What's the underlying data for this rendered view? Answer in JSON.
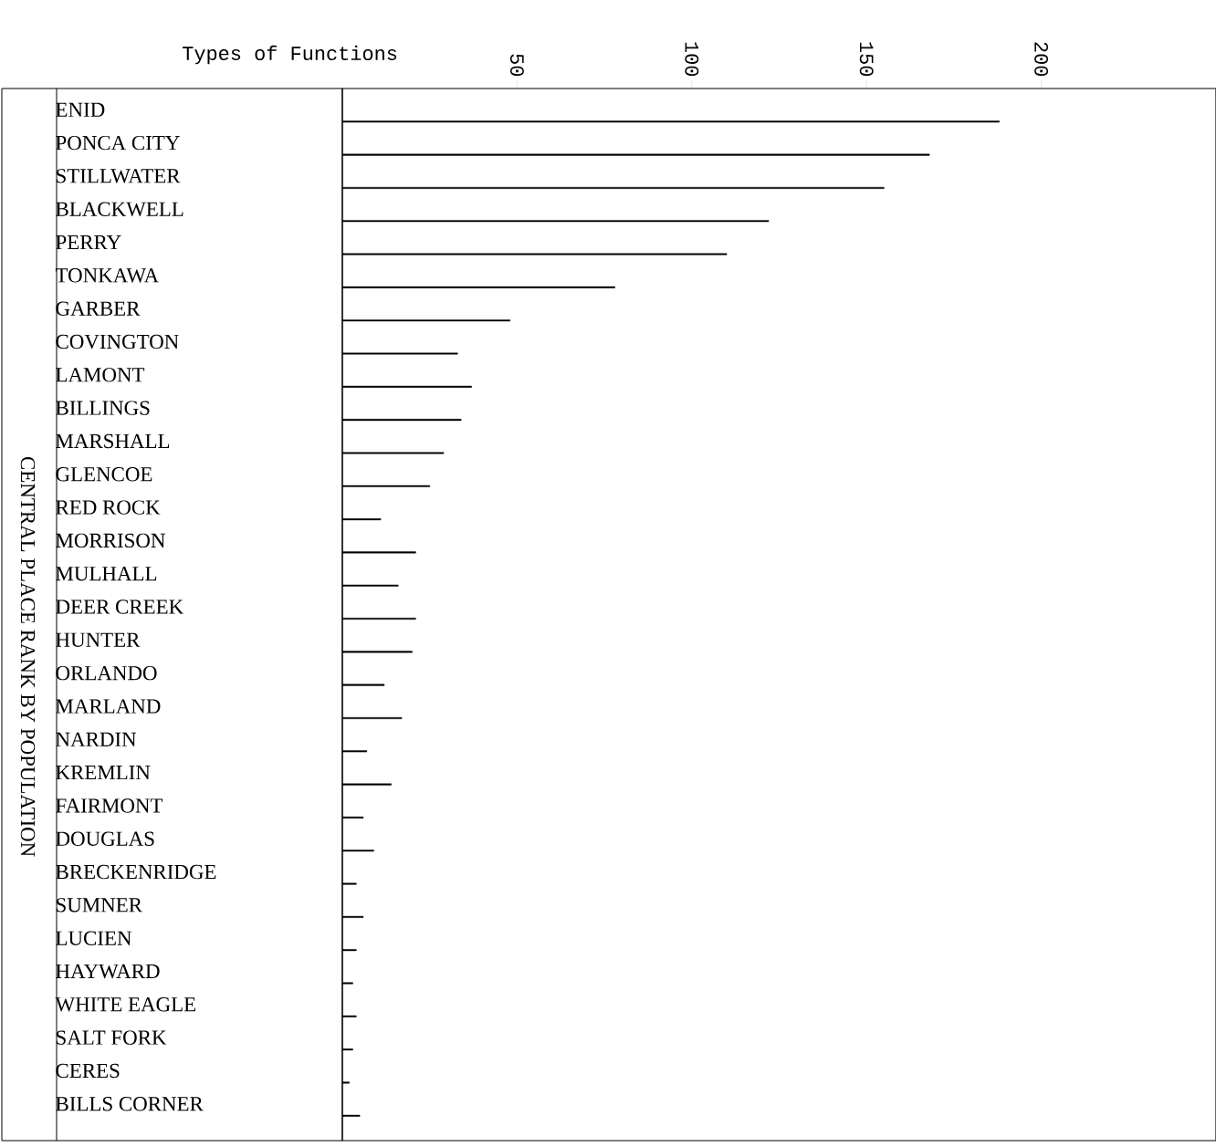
{
  "chart_data": {
    "type": "bar",
    "orientation": "horizontal",
    "xlabel": "Types of Functions",
    "ylabel": "CENTRAL PLACE RANK BY POPULATION",
    "categories": [
      "ENID",
      "PONCA CITY",
      "STILLWATER",
      "BLACKWELL",
      "PERRY",
      "TONKAWA",
      "GARBER",
      "COVINGTON",
      "LAMONT",
      "BILLINGS",
      "MARSHALL",
      "GLENCOE",
      "RED ROCK",
      "MORRISON",
      "MULHALL",
      "DEER CREEK",
      "HUNTER",
      "ORLANDO",
      "MARLAND",
      "NARDIN",
      "KREMLIN",
      "FAIRMONT",
      "DOUGLAS",
      "BRECKENRIDGE",
      "SUMNER",
      "LUCIEN",
      "HAYWARD",
      "WHITE EAGLE",
      "SALT FORK",
      "CERES",
      "BILLS CORNER"
    ],
    "values": [
      188,
      168,
      155,
      122,
      110,
      78,
      48,
      33,
      37,
      34,
      29,
      25,
      11,
      21,
      16,
      21,
      20,
      12,
      17,
      7,
      14,
      6,
      9,
      4,
      6,
      4,
      3,
      4,
      3,
      2,
      5
    ],
    "color": "#000000",
    "xlim": [
      0,
      250
    ],
    "xticks": [
      50,
      100,
      150,
      200
    ]
  }
}
